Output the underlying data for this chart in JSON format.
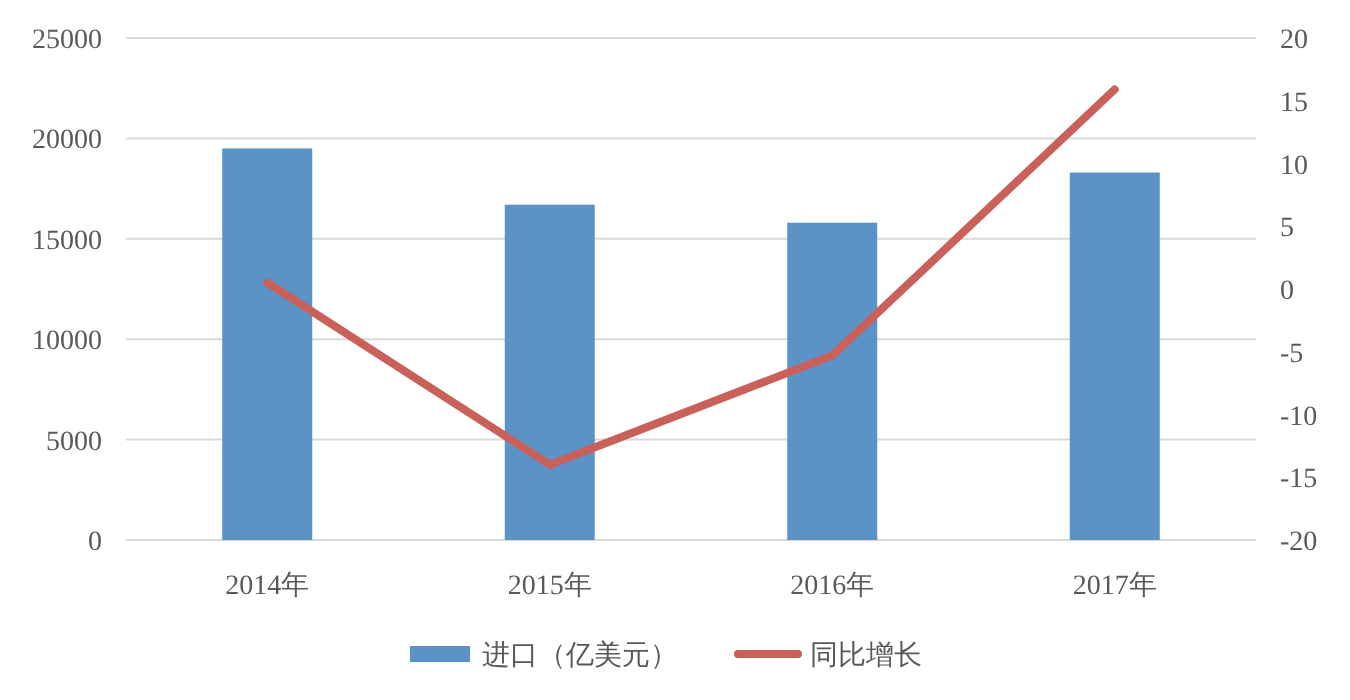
{
  "chart_data": {
    "type": "bar",
    "categories": [
      "2014年",
      "2015年",
      "2016年",
      "2017年"
    ],
    "series": [
      {
        "name": "进口（亿美元）",
        "color": "#5b93c7",
        "values": [
          19500,
          16700,
          15800,
          18300
        ]
      },
      {
        "name": "同比增长",
        "type": "line",
        "axis": "y2",
        "color": "#c9605a",
        "values": [
          0.5,
          -14,
          -5.3,
          15.9
        ]
      }
    ],
    "ylim": [
      0,
      25000
    ],
    "yticks": [
      0,
      5000,
      10000,
      15000,
      20000,
      25000
    ],
    "y2lim": [
      -20,
      20
    ],
    "y2ticks": [
      -20,
      -15,
      -10,
      -5,
      0,
      5,
      10,
      15,
      20
    ],
    "grid": "y",
    "legend": "bottom"
  }
}
